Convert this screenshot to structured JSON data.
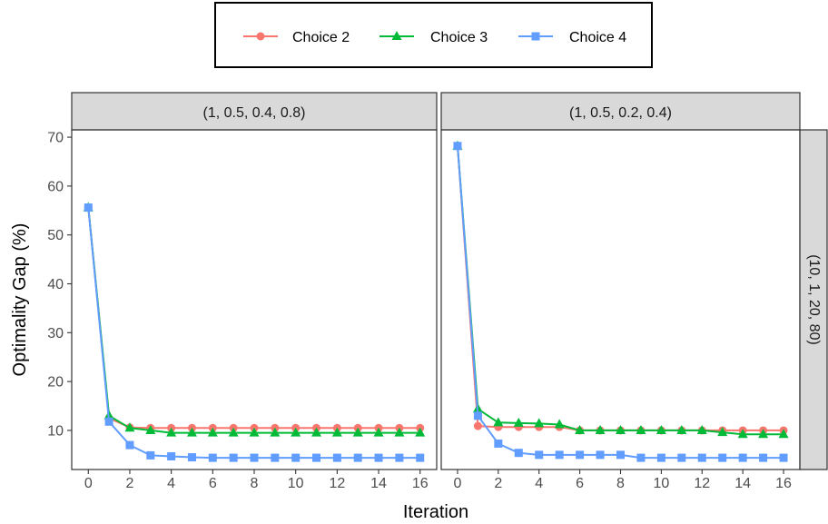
{
  "chart_data": {
    "type": "line",
    "xlabel": "Iteration",
    "ylabel": "Optimality Gap (%)",
    "xlim": [
      -0.8,
      16.8
    ],
    "ylim": [
      2,
      71.5
    ],
    "x_ticks": [
      0,
      2,
      4,
      6,
      8,
      10,
      12,
      14,
      16
    ],
    "y_ticks": [
      10,
      20,
      30,
      40,
      50,
      60,
      70
    ],
    "legend_position": "top",
    "grid": false,
    "row_strip": "(10, 1, 20, 80)",
    "series_styles": [
      {
        "name": "Choice 2",
        "color": "#F8766D",
        "marker": "circle"
      },
      {
        "name": "Choice 3",
        "color": "#00BA38",
        "marker": "triangle"
      },
      {
        "name": "Choice 4",
        "color": "#619CFF",
        "marker": "square"
      }
    ],
    "panels": [
      {
        "strip": "(1, 0.5, 0.4, 0.8)",
        "x": [
          0,
          1,
          2,
          3,
          4,
          5,
          6,
          7,
          8,
          9,
          10,
          11,
          12,
          13,
          14,
          15,
          16
        ],
        "series": [
          {
            "name": "Choice 2",
            "values": [
              55.6,
              12.5,
              10.6,
              10.5,
              10.5,
              10.5,
              10.5,
              10.5,
              10.5,
              10.5,
              10.5,
              10.5,
              10.5,
              10.5,
              10.5,
              10.5,
              10.5
            ]
          },
          {
            "name": "Choice 3",
            "values": [
              55.6,
              13.0,
              10.5,
              10.0,
              9.5,
              9.5,
              9.5,
              9.5,
              9.5,
              9.5,
              9.5,
              9.5,
              9.5,
              9.5,
              9.5,
              9.5,
              9.5
            ]
          },
          {
            "name": "Choice 4",
            "values": [
              55.6,
              11.8,
              7.0,
              4.9,
              4.7,
              4.5,
              4.4,
              4.4,
              4.4,
              4.4,
              4.4,
              4.4,
              4.4,
              4.4,
              4.4,
              4.4,
              4.4
            ]
          }
        ]
      },
      {
        "strip": "(1, 0.5, 0.2, 0.4)",
        "x": [
          0,
          1,
          2,
          3,
          4,
          5,
          6,
          7,
          8,
          9,
          10,
          11,
          12,
          13,
          14,
          15,
          16
        ],
        "series": [
          {
            "name": "Choice 2",
            "values": [
              68.2,
              10.9,
              10.7,
              10.7,
              10.7,
              10.7,
              10.0,
              10.0,
              10.0,
              10.0,
              10.0,
              10.0,
              10.0,
              10.0,
              10.0,
              10.0,
              10.0
            ]
          },
          {
            "name": "Choice 3",
            "values": [
              68.2,
              14.4,
              11.6,
              11.5,
              11.4,
              11.2,
              10.0,
              10.0,
              10.0,
              10.0,
              10.0,
              10.0,
              10.0,
              9.6,
              9.2,
              9.2,
              9.2
            ]
          },
          {
            "name": "Choice 4",
            "values": [
              68.2,
              13.0,
              7.3,
              5.4,
              5.0,
              5.0,
              5.0,
              5.0,
              5.0,
              4.4,
              4.4,
              4.4,
              4.4,
              4.4,
              4.4,
              4.4,
              4.4
            ]
          }
        ]
      }
    ]
  }
}
